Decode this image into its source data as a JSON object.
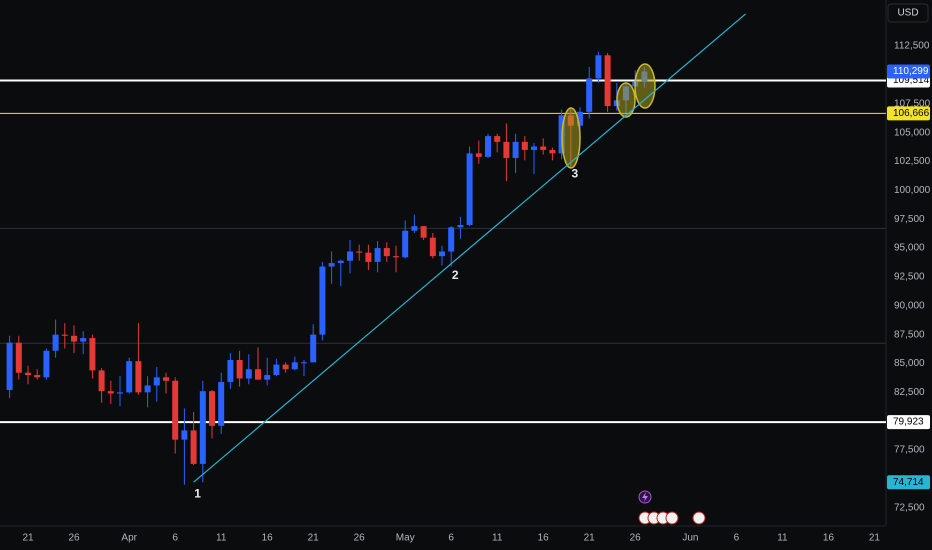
{
  "chart_data": {
    "type": "candlestick",
    "currency": "USD",
    "x": [
      "Mar 19",
      "Mar 20",
      "Mar 21",
      "Mar 22",
      "Mar 23",
      "Mar 24",
      "Mar 25",
      "Mar 26",
      "Mar 27",
      "Mar 28",
      "Mar 29",
      "Mar 30",
      "Mar 31",
      "Apr 1",
      "Apr 2",
      "Apr 3",
      "Apr 4",
      "Apr 5",
      "Apr 6",
      "Apr 7",
      "Apr 8",
      "Apr 9",
      "Apr 10",
      "Apr 11",
      "Apr 12",
      "Apr 13",
      "Apr 14",
      "Apr 15",
      "Apr 16",
      "Apr 17",
      "Apr 18",
      "Apr 19",
      "Apr 20",
      "Apr 21",
      "Apr 22",
      "Apr 23",
      "Apr 24",
      "Apr 25",
      "Apr 26",
      "Apr 27",
      "Apr 28",
      "Apr 29",
      "Apr 30",
      "May 1",
      "May 2",
      "May 3",
      "May 4",
      "May 5",
      "May 6",
      "May 7",
      "May 8",
      "May 9",
      "May 10",
      "May 11",
      "May 12",
      "May 13",
      "May 14",
      "May 15",
      "May 16",
      "May 17",
      "May 18",
      "May 19",
      "May 20",
      "May 21",
      "May 22",
      "May 23",
      "May 24",
      "May 25",
      "May 26",
      "May 27"
    ],
    "open": [
      82700,
      86800,
      84200,
      84000,
      83800,
      86100,
      87500,
      87400,
      86900,
      87200,
      84400,
      82600,
      82400,
      82500,
      85200,
      82500,
      83100,
      83800,
      83500,
      78400,
      79200,
      76300,
      82600,
      79600,
      83400,
      85300,
      83700,
      84500,
      83600,
      84000,
      84900,
      84500,
      85100,
      85100,
      87500,
      93400,
      93700,
      93900,
      94700,
      94600,
      93800,
      95000,
      94300,
      94200,
      96500,
      96900,
      95900,
      94300,
      94700,
      96800,
      97000,
      103200,
      102900,
      104700,
      104200,
      102800,
      104200,
      103500,
      103800,
      103500,
      103200,
      106500,
      105600,
      106800,
      109700,
      111700,
      107300,
      107800,
      109000,
      109400
    ],
    "high": [
      87400,
      87400,
      84800,
      84500,
      86300,
      88800,
      88500,
      88300,
      87800,
      87500,
      84600,
      83500,
      83900,
      85500,
      88500,
      83900,
      84700,
      84200,
      83800,
      81100,
      80800,
      83500,
      82700,
      84200,
      85900,
      86100,
      85800,
      86400,
      85500,
      85400,
      85100,
      85600,
      85300,
      88400,
      93800,
      94700,
      94000,
      95700,
      95300,
      95300,
      95600,
      95500,
      95200,
      97400,
      97900,
      96900,
      96300,
      95200,
      96900,
      97700,
      103800,
      104300,
      104900,
      104900,
      105800,
      104900,
      104700,
      104100,
      104500,
      103700,
      107000,
      107100,
      107200,
      110700,
      112000,
      111900,
      109300,
      109300,
      110400,
      110700
    ],
    "low": [
      82000,
      83600,
      83200,
      83600,
      83600,
      85500,
      86300,
      85900,
      85800,
      83700,
      81600,
      81500,
      81300,
      82400,
      82300,
      81200,
      81700,
      82400,
      77200,
      74500,
      76200,
      74700,
      78500,
      78900,
      82800,
      83000,
      83200,
      83600,
      83100,
      83900,
      84200,
      84400,
      83900,
      85100,
      87000,
      91900,
      91700,
      92800,
      93900,
      93100,
      92900,
      93800,
      92900,
      94100,
      96300,
      95700,
      94100,
      93500,
      93400,
      95800,
      96900,
      102300,
      102800,
      103300,
      100800,
      101500,
      102600,
      101400,
      103100,
      102600,
      102700,
      102000,
      104400,
      106200,
      109300,
      106800,
      106900,
      106700,
      108800,
      108900
    ],
    "close": [
      86800,
      84200,
      84000,
      83800,
      86100,
      87500,
      87400,
      86900,
      87200,
      84400,
      82600,
      82400,
      82500,
      85200,
      82500,
      83100,
      83800,
      83500,
      78400,
      79200,
      76300,
      82600,
      79600,
      83400,
      85300,
      83700,
      84500,
      83600,
      84000,
      84900,
      84500,
      85100,
      85100,
      87500,
      93400,
      93700,
      93900,
      94700,
      94600,
      93800,
      95000,
      94300,
      94200,
      96500,
      96900,
      95900,
      94300,
      94700,
      96800,
      97000,
      103200,
      102900,
      104700,
      104200,
      102800,
      104200,
      103500,
      103800,
      103500,
      103200,
      106500,
      105600,
      106800,
      109700,
      111700,
      107300,
      107800,
      109000,
      109400,
      110299
    ],
    "up_color": "#2962ff",
    "down_color": "#e53935",
    "ylim": [
      70920,
      116490
    ],
    "yticks": [
      {
        "value": 72500,
        "label": "72,500"
      },
      {
        "value": 77500,
        "label": "77,500"
      },
      {
        "value": 82500,
        "label": "82,500"
      },
      {
        "value": 85000,
        "label": "85,000"
      },
      {
        "value": 87500,
        "label": "87,500"
      },
      {
        "value": 90000,
        "label": "90,000"
      },
      {
        "value": 92500,
        "label": "92,500"
      },
      {
        "value": 95000,
        "label": "95,000"
      },
      {
        "value": 97500,
        "label": "97,500"
      },
      {
        "value": 100000,
        "label": "100,000"
      },
      {
        "value": 102500,
        "label": "102,500"
      },
      {
        "value": 105000,
        "label": "105,000"
      },
      {
        "value": 107500,
        "label": "107,500"
      },
      {
        "value": 112500,
        "label": "112,500"
      }
    ],
    "xticks": [
      {
        "value": "Mar 21",
        "label": "21"
      },
      {
        "value": "Mar 26",
        "label": "26"
      },
      {
        "value": "Apr 1",
        "label": "Apr"
      },
      {
        "value": "Apr 6",
        "label": "6"
      },
      {
        "value": "Apr 11",
        "label": "11"
      },
      {
        "value": "Apr 16",
        "label": "16"
      },
      {
        "value": "Apr 21",
        "label": "21"
      },
      {
        "value": "Apr 26",
        "label": "26"
      },
      {
        "value": "May 1",
        "label": "May"
      },
      {
        "value": "May 6",
        "label": "6"
      },
      {
        "value": "May 11",
        "label": "11"
      },
      {
        "value": "May 16",
        "label": "16"
      },
      {
        "value": "May 21",
        "label": "21"
      },
      {
        "value": "May 26",
        "label": "26"
      },
      {
        "value": "Jun 1",
        "label": "Jun"
      },
      {
        "value": "Jun 6",
        "label": "6"
      },
      {
        "value": "Jun 11",
        "label": "11"
      },
      {
        "value": "Jun 16",
        "label": "16"
      },
      {
        "value": "Jun 21",
        "label": "21"
      }
    ],
    "horizontal_lines": [
      {
        "value": 109514,
        "label": "109,514",
        "color": "#ffffff"
      },
      {
        "value": 106666,
        "label": "106,666",
        "color": "#f5e12b"
      },
      {
        "value": 79923,
        "label": "79,923",
        "color": "#ffffff"
      },
      {
        "value": 96700,
        "color": "#2e3038"
      },
      {
        "value": 86750,
        "color": "#2e3038"
      }
    ],
    "current_price": {
      "value": 110299,
      "label": "110,299",
      "color": "#2962ff"
    },
    "trendline": {
      "color": "#26b6d4",
      "start": {
        "x": "Apr 8",
        "y": 74714,
        "label": "74,714"
      },
      "end": {
        "x": "Jun 7",
        "y": 115280
      }
    },
    "annotations": [
      {
        "text": "1",
        "x": "Apr 8"
      },
      {
        "text": "2",
        "x": "May 6"
      },
      {
        "text": "3",
        "x": "May 19"
      }
    ]
  }
}
